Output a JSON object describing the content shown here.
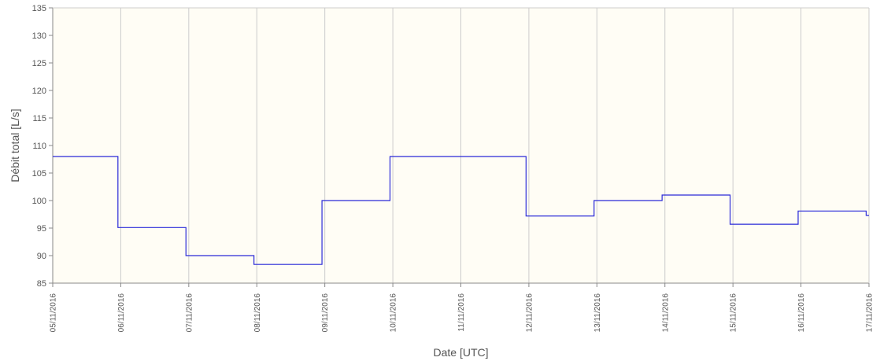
{
  "chart_data": {
    "type": "line",
    "step": true,
    "xlabel": "Date [UTC]",
    "ylabel": "Débit total [L/s]",
    "ylim": [
      85,
      135
    ],
    "yticks": [
      85,
      90,
      95,
      100,
      105,
      110,
      115,
      120,
      125,
      130,
      135
    ],
    "xticks": [
      "05/11/2016",
      "06/11/2016",
      "07/11/2016",
      "08/11/2016",
      "09/11/2016",
      "10/11/2016",
      "11/11/2016",
      "12/11/2016",
      "13/11/2016",
      "14/11/2016",
      "15/11/2016",
      "16/11/2016",
      "17/11/2016"
    ],
    "xlim": [
      "2016-11-05 00:00",
      "2016-11-17 00:00"
    ],
    "grid": true,
    "colors": {
      "line": "#2a2ad8",
      "plot_bg": "#fffdf5",
      "grid": "#cccccc",
      "axis": "#888888"
    },
    "series": [
      {
        "points": [
          [
            "2016-11-05 00:00",
            108
          ],
          [
            "2016-11-05 23:00",
            95.1
          ],
          [
            "2016-11-06 23:00",
            90
          ],
          [
            "2016-11-07 23:00",
            88.4
          ],
          [
            "2016-11-08 23:00",
            100
          ],
          [
            "2016-11-09 23:00",
            108
          ],
          [
            "2016-11-11 23:00",
            97.2
          ],
          [
            "2016-11-12 23:00",
            100
          ],
          [
            "2016-11-13 23:00",
            101
          ],
          [
            "2016-11-14 23:00",
            95.7
          ],
          [
            "2016-11-15 23:00",
            98.1
          ],
          [
            "2016-11-16 23:00",
            97.3
          ],
          [
            "2016-11-17 00:00",
            97.3
          ]
        ]
      }
    ]
  }
}
